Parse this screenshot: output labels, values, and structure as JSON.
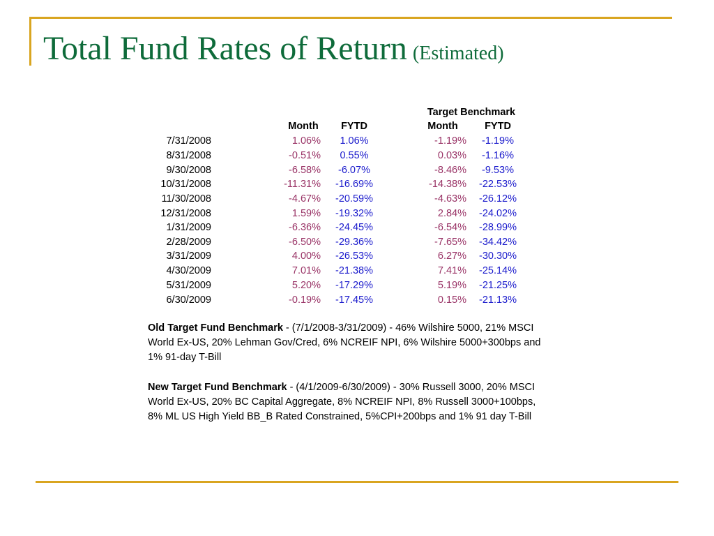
{
  "title": {
    "main": "Total Fund Rates of Return",
    "sub": "(Estimated)"
  },
  "table": {
    "group_header": "Target Benchmark",
    "columns": {
      "fund_month": "Month",
      "fund_fytd": "FYTD",
      "tb_month": "Month",
      "tb_fytd": "FYTD"
    },
    "rows": [
      {
        "date": "7/31/2008",
        "fund_month": "1.06%",
        "fund_fytd": "1.06%",
        "tb_month": "-1.19%",
        "tb_fytd": "-1.19%"
      },
      {
        "date": "8/31/2008",
        "fund_month": "-0.51%",
        "fund_fytd": "0.55%",
        "tb_month": "0.03%",
        "tb_fytd": "-1.16%"
      },
      {
        "date": "9/30/2008",
        "fund_month": "-6.58%",
        "fund_fytd": "-6.07%",
        "tb_month": "-8.46%",
        "tb_fytd": "-9.53%"
      },
      {
        "date": "10/31/2008",
        "fund_month": "-11.31%",
        "fund_fytd": "-16.69%",
        "tb_month": "-14.38%",
        "tb_fytd": "-22.53%"
      },
      {
        "date": "11/30/2008",
        "fund_month": "-4.67%",
        "fund_fytd": "-20.59%",
        "tb_month": "-4.63%",
        "tb_fytd": "-26.12%"
      },
      {
        "date": "12/31/2008",
        "fund_month": "1.59%",
        "fund_fytd": "-19.32%",
        "tb_month": "2.84%",
        "tb_fytd": "-24.02%"
      },
      {
        "date": "1/31/2009",
        "fund_month": "-6.36%",
        "fund_fytd": "-24.45%",
        "tb_month": "-6.54%",
        "tb_fytd": "-28.99%"
      },
      {
        "date": "2/28/2009",
        "fund_month": "-6.50%",
        "fund_fytd": "-29.36%",
        "tb_month": "-7.65%",
        "tb_fytd": "-34.42%"
      },
      {
        "date": "3/31/2009",
        "fund_month": "4.00%",
        "fund_fytd": "-26.53%",
        "tb_month": "6.27%",
        "tb_fytd": "-30.30%"
      },
      {
        "date": "4/30/2009",
        "fund_month": "7.01%",
        "fund_fytd": "-21.38%",
        "tb_month": "7.41%",
        "tb_fytd": "-25.14%"
      },
      {
        "date": "5/31/2009",
        "fund_month": "5.20%",
        "fund_fytd": "-17.29%",
        "tb_month": "5.19%",
        "tb_fytd": "-21.25%"
      },
      {
        "date": "6/30/2009",
        "fund_month": "-0.19%",
        "fund_fytd": "-17.45%",
        "tb_month": "0.15%",
        "tb_fytd": "-21.13%"
      }
    ]
  },
  "notes": {
    "old": {
      "label": "Old Target Fund Benchmark",
      "lines": [
        " - (7/1/2008-3/31/2009) - 46% Wilshire 5000, 21% MSCI",
        "World Ex-US, 20% Lehman Gov/Cred, 6% NCREIF NPI, 6% Wilshire 5000+300bps and",
        "1% 91-day T-Bill"
      ]
    },
    "new": {
      "label": "New Target Fund Benchmark",
      "lines": [
        " - (4/1/2009-6/30/2009) - 30% Russell 3000, 20% MSCI",
        "World Ex-US, 20% BC Capital Aggregate, 8% NCREIF NPI, 8% Russell 3000+100bps,",
        "8% ML US High Yield BB_B Rated Constrained, 5%CPI+200bps and 1% 91 day T-Bill"
      ]
    }
  },
  "colors": {
    "title": "#0e6b3a",
    "frame": "#d9a520",
    "month_values": "#993366",
    "fytd_values": "#1a1acc"
  }
}
